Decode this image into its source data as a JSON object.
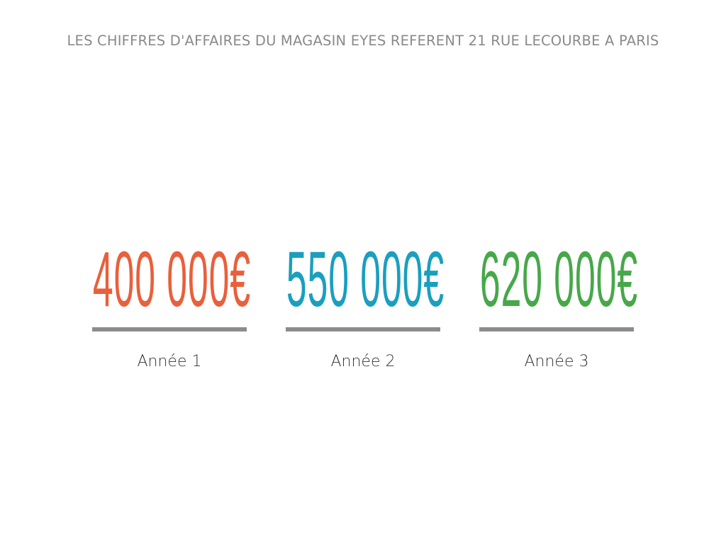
{
  "title": "LES CHIFFRES D'AFFAIRES DU MAGASIN EYES REFERENT 21 RUE LECOURBE A PARIS",
  "stats": [
    {
      "value": "400 000€",
      "label": "Année 1",
      "color": "#e8603c"
    },
    {
      "value": "550 000€",
      "label": "Année 2",
      "color": "#1a9fbf"
    },
    {
      "value": "620 000€",
      "label": "Année 3",
      "color": "#47a84a"
    }
  ],
  "divider_color": "#8c8c8c"
}
